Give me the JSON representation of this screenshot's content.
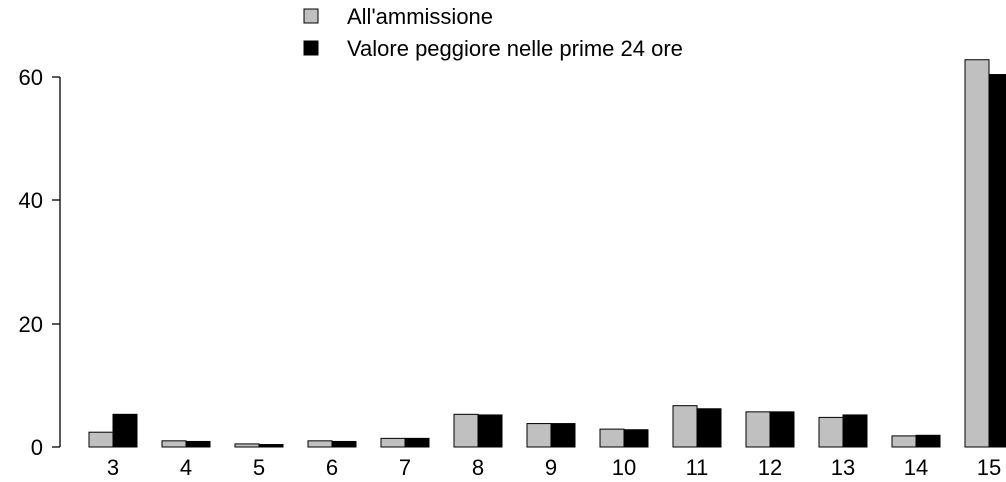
{
  "chart_data": {
    "type": "bar",
    "categories": [
      "3",
      "4",
      "5",
      "6",
      "7",
      "8",
      "9",
      "10",
      "11",
      "12",
      "13",
      "14",
      "15"
    ],
    "series": [
      {
        "name": "All'ammissione",
        "color": "#c0c0c0",
        "values": [
          2.4,
          1.0,
          0.5,
          1.0,
          1.4,
          5.3,
          3.8,
          2.9,
          6.7,
          5.7,
          4.8,
          1.8,
          62.8
        ]
      },
      {
        "name": "Valore peggiore nelle prime 24 ore",
        "color": "#000000",
        "values": [
          5.3,
          0.9,
          0.4,
          0.9,
          1.4,
          5.2,
          3.8,
          2.8,
          6.2,
          5.7,
          5.2,
          1.9,
          60.4
        ]
      }
    ],
    "yticks": [
      0,
      20,
      40,
      60
    ],
    "ylim": [
      0,
      63
    ],
    "title": "",
    "xlabel": "",
    "ylabel": "",
    "legend_position": "top"
  }
}
